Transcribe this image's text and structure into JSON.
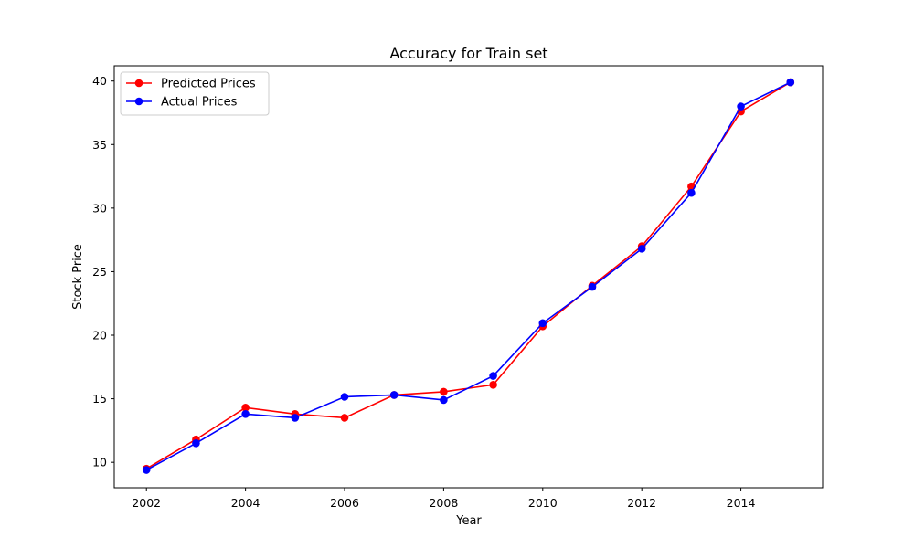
{
  "chart_data": {
    "type": "line",
    "title": "Accuracy for Train set",
    "xlabel": "Year",
    "ylabel": "Stock Price",
    "x": [
      2002,
      2003,
      2004,
      2005,
      2006,
      2007,
      2008,
      2009,
      2010,
      2011,
      2012,
      2013,
      2014,
      2015
    ],
    "series": [
      {
        "name": "Predicted Prices",
        "color": "#ff0000",
        "values": [
          9.5,
          11.8,
          14.3,
          13.8,
          13.5,
          15.3,
          15.55,
          16.1,
          20.7,
          23.9,
          27.0,
          31.7,
          37.6,
          39.9
        ]
      },
      {
        "name": "Actual Prices",
        "color": "#0000ff",
        "values": [
          9.4,
          11.5,
          13.8,
          13.5,
          15.15,
          15.3,
          14.9,
          16.8,
          20.95,
          23.8,
          26.8,
          31.2,
          38.0,
          39.9
        ]
      }
    ],
    "xlim": [
      2001.35,
      2015.65
    ],
    "ylim": [
      8.0,
      41.2
    ],
    "xticks": [
      2002,
      2004,
      2006,
      2008,
      2010,
      2012,
      2014
    ],
    "yticks": [
      10,
      15,
      20,
      25,
      30,
      35,
      40
    ],
    "grid": false,
    "legend": "top-left",
    "marker": "circle"
  }
}
